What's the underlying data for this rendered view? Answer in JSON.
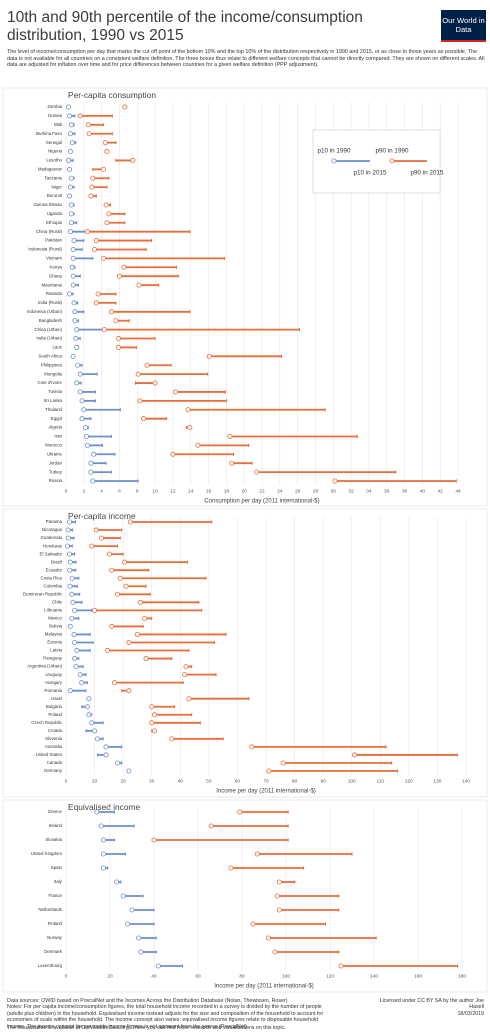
{
  "title": "10th and 90th percentile of the income/consumption distribution, 1990 vs 2015",
  "subtitle": "The level of income/consumption per day that marks the cut off point of the bottom 10% and the top 10% of the distribution respectively in 1990 and 2015, or as close to those years as possible. The data is not available for all countries on a consistent welfare definition. The three boxes thus relate to different welfare concepts that cannot be directly compared. They are shown on different scales. All data are adjusted for inflation over time and for price differences between countries for a given welfare definition (PPP adjustment).",
  "logo": "Our World in Data",
  "footer": {
    "sources": "Data sources: OWID based on PovcalNet and the Incomes Across the Distribution Database (Nolan, Thewissen, Roser)",
    "notes": "Notes: For per capita income/consumption figures, the total household income recorded in a survey is divided by the number of people (adults plus children) in the household. Equivalised income instead adjusts for the size and composition of the household to account for economies of scale within the household. The income concept also varies: equivalised income figures relate to disposable household income. The income concept for per capita income figures is not apparent from the source (PovcalNet).",
    "license": "Licensed under CC BY SA by the author Joe Hasell",
    "date": "18/03/2019",
    "link": "The visualization is available at OurWorldInData.org. There you can find more research and visualizations on this topic."
  },
  "chart_data": [
    {
      "type": "dumbbell",
      "title": "Per-capita consumption",
      "xlabel": "Consumption per day (2011 international-$)",
      "xlim": [
        0,
        44
      ],
      "xticks": [
        0,
        2,
        4,
        6,
        8,
        10,
        12,
        14,
        16,
        18,
        20,
        22,
        24,
        26,
        28,
        30,
        32,
        34,
        36,
        38,
        40,
        42,
        44
      ],
      "grid": true,
      "categories": [
        "Zambia",
        "Guinea",
        "Mali",
        "Burkina Faso",
        "Senegal",
        "Nigeria",
        "Lesotho",
        "Madagascar",
        "Tanzania",
        "Niger",
        "Burundi",
        "Guinea Bissau",
        "Uganda",
        "Ethiopia",
        "China (Rural)",
        "Pakistan",
        "Indonesia (Rural)",
        "Vietnam",
        "Kenya",
        "Ghana",
        "Mauritania",
        "Rwanda",
        "India (Rural)",
        "Indonesia (Urban)",
        "Bangladesh",
        "China (Urban)",
        "India (Urban)",
        "Laos",
        "South Africa",
        "Philippines",
        "Mongolia",
        "Cote d'Ivoire",
        "Tunisia",
        "Sri Lanka",
        "Thailand",
        "Egypt",
        "Algeria",
        "Iran",
        "Morocco",
        "Ukraine",
        "Jordan",
        "Turkey",
        "Russia"
      ],
      "series": [
        {
          "name": "p10 in 1990",
          "color": "#6f8fca",
          "values": [
            0.3,
            0.4,
            0.6,
            0.5,
            0.7,
            0.5,
            0.3,
            0.4,
            0.6,
            0.5,
            0.4,
            0.6,
            0.6,
            0.6,
            0.5,
            0.9,
            0.8,
            0.8,
            0.7,
            0.8,
            0.8,
            0.4,
            0.9,
            1.0,
            1.0,
            1.2,
            1.1,
            1.2,
            0.8,
            1.3,
            1.6,
            1.2,
            1.6,
            1.8,
            2.0,
            1.8,
            2.2,
            2.3,
            2.4,
            3.1,
            2.8,
            2.8,
            3.0
          ]
        },
        {
          "name": "p10 in 2015",
          "color": "#6f8fca",
          "values": [
            0.3,
            1.0,
            0.9,
            1.0,
            1.1,
            0.6,
            0.8,
            0.5,
            0.9,
            0.9,
            0.5,
            0.9,
            0.9,
            1.2,
            2.5,
            2.0,
            1.8,
            3.0,
            1.0,
            1.6,
            1.4,
            0.8,
            1.3,
            2.0,
            1.4,
            4.2,
            1.6,
            1.4,
            0.9,
            1.8,
            3.5,
            1.7,
            3.3,
            3.3,
            6.1,
            2.8,
            2.5,
            5.1,
            4.1,
            5.5,
            4.5,
            5.1,
            8.1
          ]
        },
        {
          "name": "p90 in 1990",
          "color": "#e56e3c",
          "values": [
            6.6,
            1.6,
            2.5,
            2.6,
            4.4,
            4.6,
            7.5,
            4.2,
            3.0,
            2.9,
            2.8,
            4.5,
            4.8,
            4.6,
            2.4,
            3.4,
            3.2,
            4.2,
            6.5,
            6.0,
            8.2,
            3.6,
            3.4,
            5.1,
            5.6,
            4.3,
            5.9,
            5.9,
            16.1,
            9.1,
            8.1,
            10.0,
            12.3,
            8.3,
            13.7,
            8.7,
            13.9,
            18.4,
            14.8,
            12.0,
            18.6,
            21.4,
            30.2
          ]
        },
        {
          "name": "p90 in 2015",
          "color": "#e56e3c",
          "values": [
            6.8,
            5.2,
            4.2,
            5.2,
            5.6,
            4.4,
            5.6,
            3.0,
            4.8,
            4.6,
            3.4,
            5.0,
            6.6,
            6.6,
            13.9,
            9.6,
            9.0,
            17.8,
            12.4,
            12.6,
            10.4,
            5.6,
            5.6,
            13.9,
            7.1,
            26.2,
            10.0,
            7.9,
            24.2,
            11.8,
            15.9,
            7.8,
            17.9,
            18.0,
            29.1,
            11.3,
            13.5,
            32.7,
            20.5,
            18.8,
            20.9,
            37.0,
            43.8
          ]
        }
      ]
    },
    {
      "type": "dumbbell",
      "title": "Per-capita income",
      "xlabel": "Income per day (2011 international-$)",
      "xlim": [
        0,
        140
      ],
      "xticks": [
        0,
        10,
        20,
        30,
        40,
        50,
        60,
        70,
        80,
        90,
        100,
        110,
        120,
        130,
        140
      ],
      "grid": true,
      "categories": [
        "Panama",
        "Nicaragua",
        "Guatemala",
        "Honduras",
        "El Salvador",
        "Brazil",
        "Ecuador",
        "Costa Rica",
        "Colombia",
        "Dominican Republic",
        "Chile",
        "Lithuania",
        "Mexico",
        "Bolivia",
        "Malaysia",
        "Estonia",
        "Latvia",
        "Paraguay",
        "Argentina (Urban)",
        "Uruguay",
        "Hungary",
        "Romania",
        "Israel",
        "Bulgaria",
        "Poland",
        "Czech Republic",
        "Croatia",
        "Slovenia",
        "Australia",
        "United States",
        "Canada",
        "Germany"
      ],
      "series": [
        {
          "color": "#6f8fca",
          "values": [
            1.2,
            0.7,
            0.8,
            0.5,
            1.2,
            1.5,
            1.3,
            2.2,
            1.4,
            2.0,
            2.4,
            3.0,
            2.0,
            1.5,
            2.8,
            3.0,
            3.8,
            3.0,
            3.5,
            5.0,
            5.5,
            1.5,
            8.0,
            7.5,
            8.0,
            9.0,
            10.0,
            11.0,
            14.0,
            14.0,
            18.0,
            22.0
          ]
        },
        {
          "color": "#6f8fca",
          "values": [
            3.3,
            2.3,
            2.8,
            2.2,
            3.0,
            3.5,
            3.4,
            4.5,
            4.0,
            4.8,
            5.6,
            9.0,
            4.5,
            1.8,
            8.5,
            9.5,
            8.5,
            4.5,
            6.0,
            7.0,
            7.5,
            7.0,
            8.5,
            5.5,
            9.0,
            13.0,
            7.0,
            13.0,
            19.5,
            11.0,
            19.5,
            21.5
          ]
        },
        {
          "color": "#e56e3c",
          "values": [
            22.5,
            10.6,
            12.4,
            9.0,
            15.2,
            20.5,
            16.0,
            19.0,
            21.0,
            18.0,
            26.0,
            10.0,
            27.5,
            16.0,
            25.0,
            22.0,
            14.5,
            28.0,
            42.0,
            41.5,
            17.0,
            22.0,
            43.0,
            30.0,
            31.0,
            30.0,
            31.0,
            37.0,
            65.0,
            101.0,
            76.0,
            71.0
          ]
        },
        {
          "color": "#e56e3c",
          "values": [
            51.0,
            19.5,
            19.0,
            18.0,
            20.0,
            42.5,
            29.0,
            49.0,
            28.0,
            29.5,
            46.5,
            47.5,
            30.0,
            27.0,
            56.0,
            52.0,
            43.0,
            37.0,
            44.0,
            52.5,
            41.0,
            19.5,
            64.0,
            38.0,
            44.0,
            47.0,
            30.0,
            55.0,
            112.0,
            137.0,
            114.0,
            116.0
          ]
        }
      ]
    },
    {
      "type": "dumbbell",
      "title": "Equivalised income",
      "xlabel": "Income per day (2011 international-$)",
      "xlim": [
        0,
        180
      ],
      "xticks": [
        0,
        20,
        40,
        60,
        80,
        100,
        120,
        140,
        160,
        180
      ],
      "grid": true,
      "categories": [
        "Greece",
        "Ireland",
        "Slovakia",
        "United Kingdom",
        "Spain",
        "Italy",
        "France",
        "Netherlands",
        "Finland",
        "Norway",
        "Denmark",
        "Luxembourg"
      ],
      "series": [
        {
          "color": "#6f8fca",
          "values": [
            14,
            16,
            17,
            17,
            17,
            23,
            26,
            30,
            28,
            33,
            34,
            42
          ]
        },
        {
          "color": "#6f8fca",
          "values": [
            22,
            31,
            22,
            27,
            19,
            25,
            35,
            40,
            40,
            41,
            41,
            53
          ]
        },
        {
          "color": "#e56e3c",
          "values": [
            79,
            66,
            40,
            87,
            75,
            97,
            96,
            97,
            85,
            92,
            95,
            125
          ]
        },
        {
          "color": "#e56e3c",
          "values": [
            101,
            101,
            101,
            130,
            108,
            104,
            124,
            124,
            118,
            141,
            124,
            178
          ]
        }
      ]
    }
  ]
}
